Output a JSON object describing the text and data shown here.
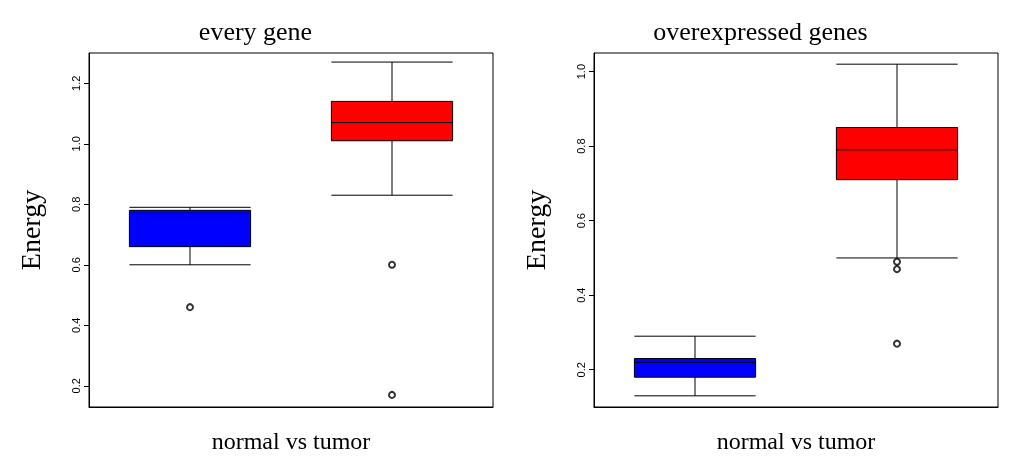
{
  "chart_data": [
    {
      "type": "box",
      "title": "every gene",
      "xlabel": "normal vs tumor",
      "ylabel": "Energy",
      "categories": [
        null,
        null
      ],
      "colors": [
        "#0000ff",
        "#ff0000"
      ],
      "ylim": [
        0.13,
        1.3
      ],
      "yticks": [
        0.2,
        0.4,
        0.6,
        0.8,
        {
          "value": 1,
          "label": "1.0"
        },
        1.2
      ],
      "tick_labels": "y",
      "grid": false,
      "boxes": [
        {
          "low": 0.6,
          "q1": 0.66,
          "median": 0.77,
          "q3": 0.78,
          "high": 0.79,
          "outliers": [
            0.46
          ]
        },
        {
          "low": 0.83,
          "q1": 1.01,
          "median": 1.07,
          "q3": 1.14,
          "high": 1.27,
          "outliers": [
            0.6,
            0.17
          ]
        }
      ]
    },
    {
      "type": "box",
      "title": "overexpressed genes",
      "xlabel": "normal vs tumor",
      "ylabel": "Energy",
      "categories": [
        null,
        null
      ],
      "colors": [
        "#0000ff",
        "#ff0000"
      ],
      "ylim": [
        0.1,
        1.05
      ],
      "yticks": [
        0.2,
        0.4,
        0.6,
        0.8,
        {
          "value": 1,
          "label": "1.0"
        }
      ],
      "tick_labels": "y",
      "grid": false,
      "boxes": [
        {
          "low": 0.13,
          "q1": 0.18,
          "median": 0.22,
          "q3": 0.23,
          "high": 0.29
        },
        {
          "low": 0.5,
          "q1": 0.71,
          "median": 0.79,
          "q3": 0.85,
          "high": 1.02,
          "outliers": [
            0.49,
            0.47,
            0.27
          ]
        }
      ]
    }
  ]
}
